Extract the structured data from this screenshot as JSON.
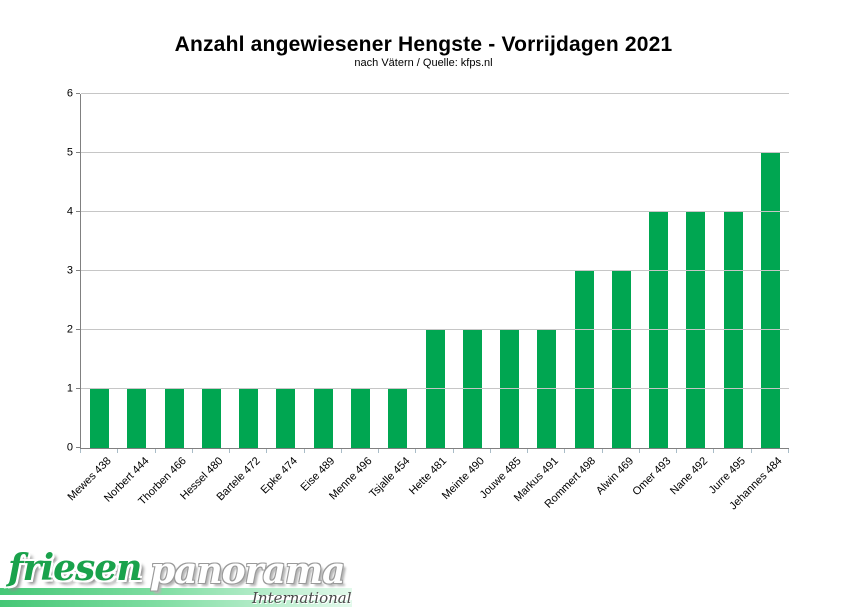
{
  "chart_data": {
    "type": "bar",
    "title": "Anzahl angewiesener Hengste - Vorrijdagen 2021",
    "subtitle": "nach Vätern / Quelle: kfps.nl",
    "categories": [
      "Mewes 438",
      "Norbert 444",
      "Thorben 466",
      "Hessel 480",
      "Bartele 472",
      "Epke 474",
      "Eise 489",
      "Menne 496",
      "Tsjalle 454",
      "Hette 481",
      "Meinte 490",
      "Jouwe 485",
      "Markus 491",
      "Rommert 498",
      "Alwin 469",
      "Omer 493",
      "Nane 492",
      "Jurre 495",
      "Jehannes 484"
    ],
    "values": [
      1,
      1,
      1,
      1,
      1,
      1,
      1,
      1,
      1,
      2,
      2,
      2,
      2,
      3,
      3,
      4,
      4,
      4,
      5
    ],
    "xlabel": "",
    "ylabel": "",
    "ylim": [
      0,
      6
    ],
    "yticks": [
      0,
      1,
      2,
      3,
      4,
      5,
      6
    ],
    "grid": true,
    "legend": "none",
    "bar_color": "#00a651"
  },
  "colors": {
    "bar": "#00a651",
    "gridline": "#c6c6c6",
    "axis": "#808080",
    "logo_green": "#1aa24c"
  },
  "logo": {
    "word1": "friesen",
    "word2": "panorama",
    "tagline": "International"
  }
}
